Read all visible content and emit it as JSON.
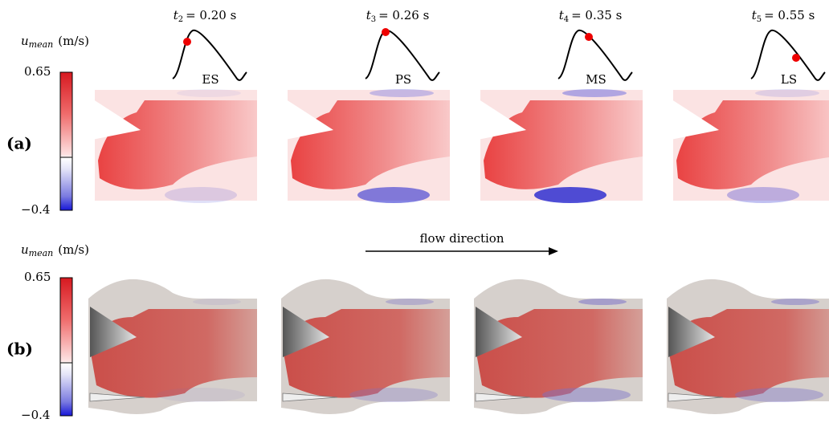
{
  "colorbar": {
    "symbol": "u",
    "subscript": "mean",
    "unit": "(m/s)",
    "max": "0.65",
    "min": "−0.4"
  },
  "rows": [
    {
      "label": "(a)"
    },
    {
      "label": "(b)"
    }
  ],
  "panels": [
    {
      "symbol": "t",
      "index": "2",
      "value": "= 0.20 s",
      "phase": "ES"
    },
    {
      "symbol": "t",
      "index": "3",
      "value": "= 0.26 s",
      "phase": "PS"
    },
    {
      "symbol": "t",
      "index": "4",
      "value": "= 0.35 s",
      "phase": "MS"
    },
    {
      "symbol": "t",
      "index": "5",
      "value": "= 0.55 s",
      "phase": "LS"
    }
  ],
  "arrow_label": "flow direction"
}
